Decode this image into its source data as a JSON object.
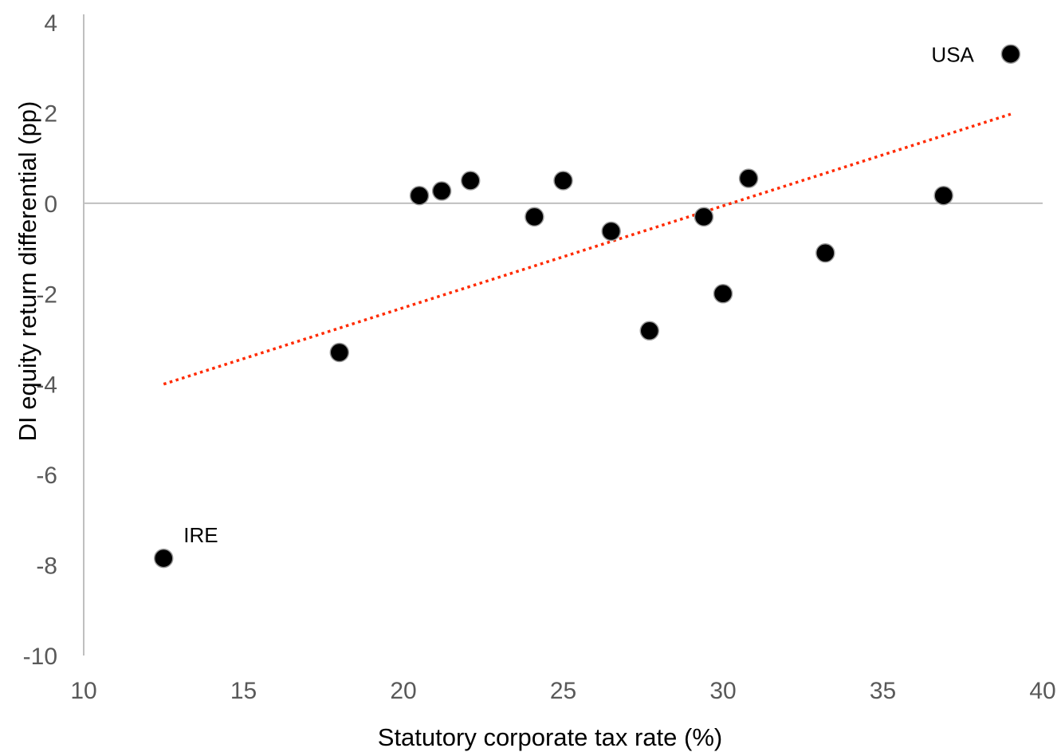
{
  "chart_data": {
    "type": "scatter",
    "title": "",
    "xlabel": "Statutory corporate tax rate (%)",
    "ylabel": "DI equity return differential (pp)",
    "xlim": [
      10,
      40
    ],
    "ylim": [
      -10,
      4
    ],
    "x_ticks": [
      "10",
      "15",
      "20",
      "25",
      "30",
      "35",
      "40"
    ],
    "y_ticks": [
      "-10",
      "-8",
      "-6",
      "-4",
      "-2",
      "0",
      "2",
      "4"
    ],
    "grid": false,
    "legend": "none",
    "series": [
      {
        "points": [
          {
            "x": 12.5,
            "y": -7.85,
            "label": "IRE"
          },
          {
            "x": 18.0,
            "y": -3.3
          },
          {
            "x": 20.5,
            "y": 0.17
          },
          {
            "x": 21.2,
            "y": 0.27
          },
          {
            "x": 22.1,
            "y": 0.5
          },
          {
            "x": 24.1,
            "y": -0.3
          },
          {
            "x": 25.0,
            "y": 0.5
          },
          {
            "x": 26.5,
            "y": -0.62
          },
          {
            "x": 27.7,
            "y": -2.82
          },
          {
            "x": 29.4,
            "y": -0.3
          },
          {
            "x": 30.0,
            "y": -2.0
          },
          {
            "x": 30.8,
            "y": 0.55
          },
          {
            "x": 33.2,
            "y": -1.1
          },
          {
            "x": 36.9,
            "y": 0.17
          },
          {
            "x": 39.0,
            "y": 3.3,
            "label": "USA"
          }
        ]
      }
    ],
    "trendline": {
      "style": "dotted",
      "color": "#ff2a00",
      "x": [
        12.5,
        39.0
      ],
      "y": [
        -4.0,
        1.97
      ]
    },
    "colors": {
      "points": "#000000",
      "axis": "#bfbfbf",
      "tick_text": "#595959"
    }
  }
}
